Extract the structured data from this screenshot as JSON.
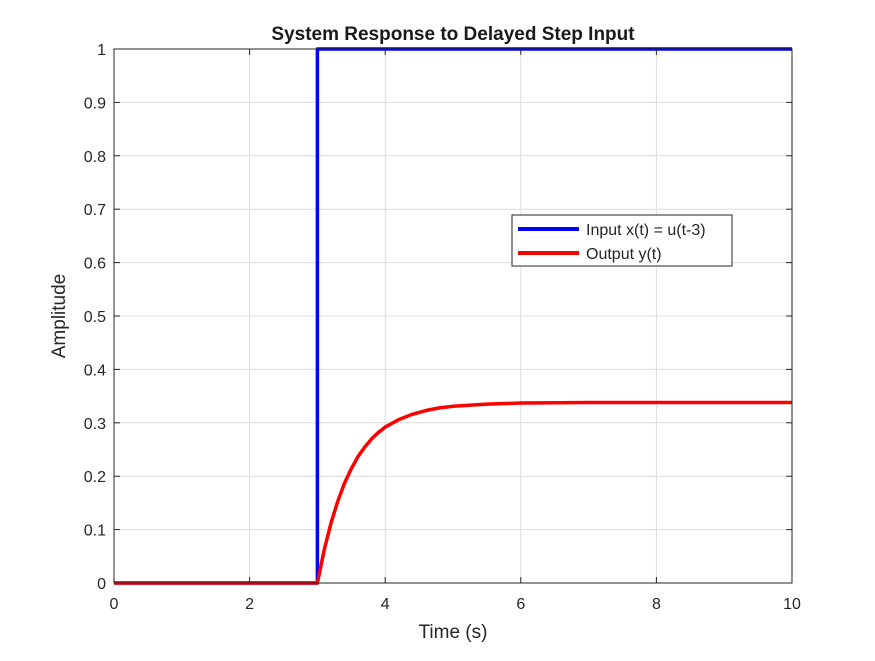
{
  "chart_data": {
    "type": "line",
    "title": "System Response to Delayed Step Input",
    "xlabel": "Time (s)",
    "ylabel": "Amplitude",
    "xlim": [
      0,
      10
    ],
    "ylim": [
      0,
      1
    ],
    "xticks": [
      0,
      2,
      4,
      6,
      8,
      10
    ],
    "yticks": [
      0,
      0.1,
      0.2,
      0.3,
      0.4,
      0.5,
      0.6,
      0.7,
      0.8,
      0.9,
      1
    ],
    "xtick_labels": [
      "0",
      "2",
      "4",
      "6",
      "8",
      "10"
    ],
    "ytick_labels": [
      "0",
      "0.1",
      "0.2",
      "0.3",
      "0.4",
      "0.5",
      "0.6",
      "0.7",
      "0.8",
      "0.9",
      "1"
    ],
    "grid": true,
    "legend_position": "center-right",
    "series": [
      {
        "name": "Input x(t) = u(t-3)",
        "color": "#0000ff",
        "x": [
          0,
          3,
          3,
          10
        ],
        "y": [
          0,
          0,
          1,
          1
        ]
      },
      {
        "name": "Output y(t)",
        "color": "#ff0000",
        "x": [
          0,
          3,
          3.1,
          3.2,
          3.3,
          3.4,
          3.5,
          3.6,
          3.7,
          3.8,
          3.9,
          4.0,
          4.2,
          4.4,
          4.6,
          4.8,
          5.0,
          5.5,
          6,
          7,
          8,
          9,
          10
        ],
        "y": [
          0,
          0,
          0.062,
          0.112,
          0.153,
          0.187,
          0.214,
          0.237,
          0.255,
          0.27,
          0.282,
          0.292,
          0.306,
          0.316,
          0.323,
          0.328,
          0.331,
          0.335,
          0.337,
          0.338,
          0.338,
          0.338,
          0.338
        ]
      }
    ]
  }
}
